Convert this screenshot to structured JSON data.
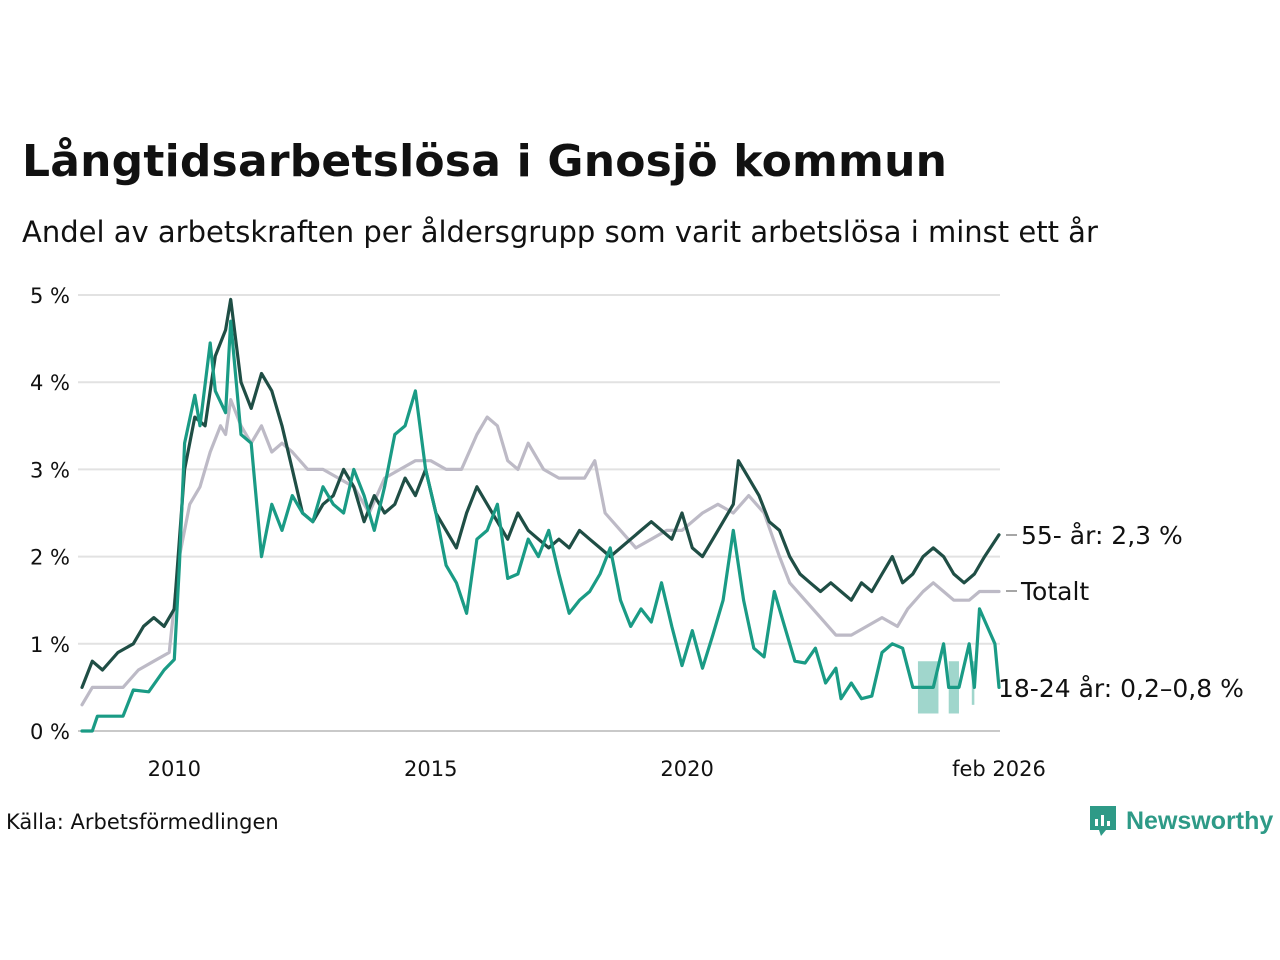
{
  "header": {
    "title": "Långtidsarbetslösa i Gnosjö kommun",
    "subtitle": "Andel av arbetskraften per åldersgrupp som varit arbetslösa i minst ett år"
  },
  "footer": {
    "source": "Källa: Arbetsförmedlingen",
    "brand": "Newsworthy",
    "brand_color": "#2e9a87"
  },
  "chart_data": {
    "type": "line",
    "title": "Långtidsarbetslösa i Gnosjö kommun",
    "xlabel": "",
    "ylabel": "",
    "xlim": [
      2008.2,
      2026.1
    ],
    "ylim": [
      0,
      5
    ],
    "grid": true,
    "y_ticks": [
      0,
      1,
      2,
      3,
      4,
      5
    ],
    "y_tick_labels": [
      "0 %",
      "1 %",
      "2 %",
      "3 %",
      "4 %",
      "5 %"
    ],
    "x_ticks": [
      2010,
      2015,
      2020,
      2026.08
    ],
    "x_tick_labels": [
      "2010",
      "2015",
      "2020",
      "feb 2026"
    ],
    "series": [
      {
        "name": "Totalt",
        "label": "Totalt",
        "color": "#bdbac6",
        "points": [
          [
            2008.2,
            0.3
          ],
          [
            2008.4,
            0.5
          ],
          [
            2009.0,
            0.5
          ],
          [
            2009.3,
            0.7
          ],
          [
            2009.6,
            0.8
          ],
          [
            2009.9,
            0.9
          ],
          [
            2010.1,
            2.0
          ],
          [
            2010.3,
            2.6
          ],
          [
            2010.5,
            2.8
          ],
          [
            2010.7,
            3.2
          ],
          [
            2010.9,
            3.5
          ],
          [
            2011.0,
            3.4
          ],
          [
            2011.1,
            3.8
          ],
          [
            2011.3,
            3.5
          ],
          [
            2011.5,
            3.3
          ],
          [
            2011.7,
            3.5
          ],
          [
            2011.9,
            3.2
          ],
          [
            2012.1,
            3.3
          ],
          [
            2012.3,
            3.2
          ],
          [
            2012.6,
            3.0
          ],
          [
            2012.9,
            3.0
          ],
          [
            2013.2,
            2.9
          ],
          [
            2013.5,
            2.8
          ],
          [
            2013.8,
            2.5
          ],
          [
            2014.1,
            2.9
          ],
          [
            2014.4,
            3.0
          ],
          [
            2014.7,
            3.1
          ],
          [
            2015.0,
            3.1
          ],
          [
            2015.3,
            3.0
          ],
          [
            2015.6,
            3.0
          ],
          [
            2015.9,
            3.4
          ],
          [
            2016.1,
            3.6
          ],
          [
            2016.3,
            3.5
          ],
          [
            2016.5,
            3.1
          ],
          [
            2016.7,
            3.0
          ],
          [
            2016.9,
            3.3
          ],
          [
            2017.2,
            3.0
          ],
          [
            2017.5,
            2.9
          ],
          [
            2017.8,
            2.9
          ],
          [
            2018.0,
            2.9
          ],
          [
            2018.2,
            3.1
          ],
          [
            2018.4,
            2.5
          ],
          [
            2018.7,
            2.3
          ],
          [
            2019.0,
            2.1
          ],
          [
            2019.3,
            2.2
          ],
          [
            2019.6,
            2.3
          ],
          [
            2019.9,
            2.3
          ],
          [
            2020.3,
            2.5
          ],
          [
            2020.6,
            2.6
          ],
          [
            2020.9,
            2.5
          ],
          [
            2021.2,
            2.7
          ],
          [
            2021.5,
            2.5
          ],
          [
            2021.8,
            2.0
          ],
          [
            2022.0,
            1.7
          ],
          [
            2022.3,
            1.5
          ],
          [
            2022.6,
            1.3
          ],
          [
            2022.9,
            1.1
          ],
          [
            2023.2,
            1.1
          ],
          [
            2023.5,
            1.2
          ],
          [
            2023.8,
            1.3
          ],
          [
            2024.1,
            1.2
          ],
          [
            2024.3,
            1.4
          ],
          [
            2024.6,
            1.6
          ],
          [
            2024.8,
            1.7
          ],
          [
            2025.0,
            1.6
          ],
          [
            2025.2,
            1.5
          ],
          [
            2025.5,
            1.5
          ],
          [
            2025.7,
            1.6
          ],
          [
            2026.08,
            1.6
          ]
        ]
      },
      {
        "name": "55- år",
        "label": "55- år: 2,3 %",
        "color": "#1f4e45",
        "points": [
          [
            2008.2,
            0.5
          ],
          [
            2008.4,
            0.8
          ],
          [
            2008.6,
            0.7
          ],
          [
            2008.9,
            0.9
          ],
          [
            2009.2,
            1.0
          ],
          [
            2009.4,
            1.2
          ],
          [
            2009.6,
            1.3
          ],
          [
            2009.8,
            1.2
          ],
          [
            2010.0,
            1.4
          ],
          [
            2010.2,
            3.0
          ],
          [
            2010.4,
            3.6
          ],
          [
            2010.6,
            3.5
          ],
          [
            2010.8,
            4.3
          ],
          [
            2011.0,
            4.6
          ],
          [
            2011.1,
            4.95
          ],
          [
            2011.3,
            4.0
          ],
          [
            2011.5,
            3.7
          ],
          [
            2011.7,
            4.1
          ],
          [
            2011.9,
            3.9
          ],
          [
            2012.1,
            3.5
          ],
          [
            2012.3,
            3.0
          ],
          [
            2012.5,
            2.5
          ],
          [
            2012.7,
            2.4
          ],
          [
            2012.9,
            2.6
          ],
          [
            2013.1,
            2.7
          ],
          [
            2013.3,
            3.0
          ],
          [
            2013.5,
            2.8
          ],
          [
            2013.7,
            2.4
          ],
          [
            2013.9,
            2.7
          ],
          [
            2014.1,
            2.5
          ],
          [
            2014.3,
            2.6
          ],
          [
            2014.5,
            2.9
          ],
          [
            2014.7,
            2.7
          ],
          [
            2014.9,
            3.0
          ],
          [
            2015.1,
            2.5
          ],
          [
            2015.3,
            2.3
          ],
          [
            2015.5,
            2.1
          ],
          [
            2015.7,
            2.5
          ],
          [
            2015.9,
            2.8
          ],
          [
            2016.1,
            2.6
          ],
          [
            2016.3,
            2.4
          ],
          [
            2016.5,
            2.2
          ],
          [
            2016.7,
            2.5
          ],
          [
            2016.9,
            2.3
          ],
          [
            2017.1,
            2.2
          ],
          [
            2017.3,
            2.1
          ],
          [
            2017.5,
            2.2
          ],
          [
            2017.7,
            2.1
          ],
          [
            2017.9,
            2.3
          ],
          [
            2018.1,
            2.2
          ],
          [
            2018.3,
            2.1
          ],
          [
            2018.5,
            2.0
          ],
          [
            2018.7,
            2.1
          ],
          [
            2018.9,
            2.2
          ],
          [
            2019.1,
            2.3
          ],
          [
            2019.3,
            2.4
          ],
          [
            2019.5,
            2.3
          ],
          [
            2019.7,
            2.2
          ],
          [
            2019.9,
            2.5
          ],
          [
            2020.1,
            2.1
          ],
          [
            2020.3,
            2.0
          ],
          [
            2020.5,
            2.2
          ],
          [
            2020.7,
            2.4
          ],
          [
            2020.9,
            2.6
          ],
          [
            2021.0,
            3.1
          ],
          [
            2021.2,
            2.9
          ],
          [
            2021.4,
            2.7
          ],
          [
            2021.6,
            2.4
          ],
          [
            2021.8,
            2.3
          ],
          [
            2022.0,
            2.0
          ],
          [
            2022.2,
            1.8
          ],
          [
            2022.4,
            1.7
          ],
          [
            2022.6,
            1.6
          ],
          [
            2022.8,
            1.7
          ],
          [
            2023.0,
            1.6
          ],
          [
            2023.2,
            1.5
          ],
          [
            2023.4,
            1.7
          ],
          [
            2023.6,
            1.6
          ],
          [
            2023.8,
            1.8
          ],
          [
            2024.0,
            2.0
          ],
          [
            2024.2,
            1.7
          ],
          [
            2024.4,
            1.8
          ],
          [
            2024.6,
            2.0
          ],
          [
            2024.8,
            2.1
          ],
          [
            2025.0,
            2.0
          ],
          [
            2025.2,
            1.8
          ],
          [
            2025.4,
            1.7
          ],
          [
            2025.6,
            1.8
          ],
          [
            2025.8,
            2.0
          ],
          [
            2026.08,
            2.25
          ]
        ]
      },
      {
        "name": "18-24 år",
        "label": "18-24 år: 0,2–0,8 %",
        "color": "#1a9b85",
        "points": [
          [
            2008.2,
            0.0
          ],
          [
            2008.4,
            0.0
          ],
          [
            2008.5,
            0.17
          ],
          [
            2009.0,
            0.17
          ],
          [
            2009.2,
            0.47
          ],
          [
            2009.5,
            0.45
          ],
          [
            2009.8,
            0.7
          ],
          [
            2010.0,
            0.82
          ],
          [
            2010.1,
            1.9
          ],
          [
            2010.2,
            3.3
          ],
          [
            2010.4,
            3.85
          ],
          [
            2010.5,
            3.5
          ],
          [
            2010.7,
            4.45
          ],
          [
            2010.8,
            3.9
          ],
          [
            2011.0,
            3.65
          ],
          [
            2011.1,
            4.7
          ],
          [
            2011.3,
            3.4
          ],
          [
            2011.5,
            3.3
          ],
          [
            2011.7,
            2.0
          ],
          [
            2011.9,
            2.6
          ],
          [
            2012.1,
            2.3
          ],
          [
            2012.3,
            2.7
          ],
          [
            2012.5,
            2.5
          ],
          [
            2012.7,
            2.4
          ],
          [
            2012.9,
            2.8
          ],
          [
            2013.1,
            2.6
          ],
          [
            2013.3,
            2.5
          ],
          [
            2013.5,
            3.0
          ],
          [
            2013.7,
            2.7
          ],
          [
            2013.9,
            2.3
          ],
          [
            2014.1,
            2.8
          ],
          [
            2014.3,
            3.4
          ],
          [
            2014.5,
            3.5
          ],
          [
            2014.7,
            3.9
          ],
          [
            2014.9,
            3.0
          ],
          [
            2015.1,
            2.5
          ],
          [
            2015.3,
            1.9
          ],
          [
            2015.5,
            1.7
          ],
          [
            2015.7,
            1.35
          ],
          [
            2015.9,
            2.2
          ],
          [
            2016.1,
            2.3
          ],
          [
            2016.3,
            2.6
          ],
          [
            2016.5,
            1.75
          ],
          [
            2016.7,
            1.8
          ],
          [
            2016.9,
            2.2
          ],
          [
            2017.1,
            2.0
          ],
          [
            2017.3,
            2.3
          ],
          [
            2017.5,
            1.8
          ],
          [
            2017.7,
            1.35
          ],
          [
            2017.9,
            1.5
          ],
          [
            2018.1,
            1.6
          ],
          [
            2018.3,
            1.8
          ],
          [
            2018.5,
            2.1
          ],
          [
            2018.7,
            1.5
          ],
          [
            2018.9,
            1.2
          ],
          [
            2019.1,
            1.4
          ],
          [
            2019.3,
            1.25
          ],
          [
            2019.5,
            1.7
          ],
          [
            2019.7,
            1.2
          ],
          [
            2019.9,
            0.75
          ],
          [
            2020.1,
            1.15
          ],
          [
            2020.3,
            0.72
          ],
          [
            2020.5,
            1.1
          ],
          [
            2020.7,
            1.5
          ],
          [
            2020.9,
            2.3
          ],
          [
            2021.1,
            1.5
          ],
          [
            2021.3,
            0.95
          ],
          [
            2021.5,
            0.85
          ],
          [
            2021.7,
            1.6
          ],
          [
            2021.9,
            1.2
          ],
          [
            2022.1,
            0.8
          ],
          [
            2022.3,
            0.78
          ],
          [
            2022.5,
            0.95
          ],
          [
            2022.7,
            0.55
          ],
          [
            2022.9,
            0.72
          ],
          [
            2023.0,
            0.37
          ],
          [
            2023.2,
            0.55
          ],
          [
            2023.4,
            0.37
          ],
          [
            2023.6,
            0.4
          ],
          [
            2023.8,
            0.9
          ],
          [
            2024.0,
            1.0
          ],
          [
            2024.2,
            0.95
          ],
          [
            2024.4,
            0.5
          ],
          [
            2024.6,
            0.5
          ],
          [
            2024.8,
            0.5
          ],
          [
            2025.0,
            1.0
          ],
          [
            2025.1,
            0.5
          ],
          [
            2025.3,
            0.5
          ],
          [
            2025.5,
            1.0
          ],
          [
            2025.6,
            0.5
          ],
          [
            2025.7,
            1.4
          ],
          [
            2025.85,
            1.2
          ],
          [
            2026.0,
            1.0
          ],
          [
            2026.08,
            0.5
          ]
        ]
      }
    ],
    "uncertainty_band": {
      "series": "18-24 år",
      "color": "#8fcfc3",
      "segments": [
        [
          [
            2024.5,
            0.2,
            0.8
          ],
          [
            2024.7,
            0.2,
            0.8
          ],
          [
            2024.9,
            0.2,
            0.8
          ]
        ],
        [
          [
            2025.1,
            0.2,
            0.8
          ],
          [
            2025.3,
            0.2,
            0.8
          ]
        ],
        [
          [
            2025.55,
            0.3,
            0.8
          ],
          [
            2025.6,
            0.3,
            0.8
          ]
        ]
      ]
    }
  }
}
